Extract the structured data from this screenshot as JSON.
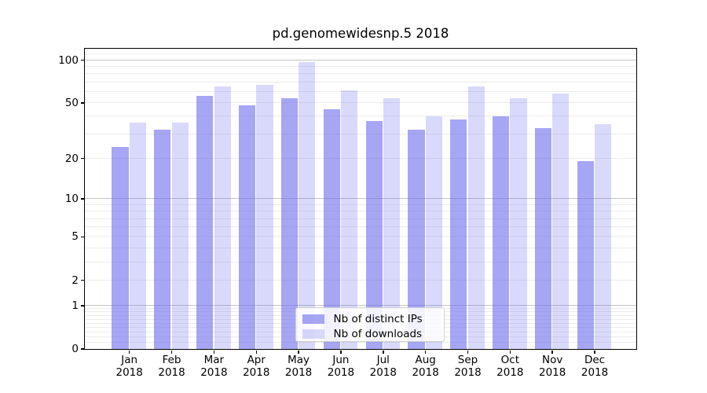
{
  "chart_data": {
    "type": "bar",
    "title": "pd.genomewidesnp.5 2018",
    "categories": [
      "Jan",
      "Feb",
      "Mar",
      "Apr",
      "May",
      "Jun",
      "Jul",
      "Aug",
      "Sep",
      "Oct",
      "Nov",
      "Dec"
    ],
    "x_tick_year": "2018",
    "series": [
      {
        "name": "Nb of distinct IPs",
        "base_color": "#6666ee",
        "alpha": 0.58,
        "effective_color": "#a8a8f3",
        "values": [
          24,
          32,
          56,
          48,
          54,
          45,
          37,
          32,
          38,
          40,
          33,
          19
        ]
      },
      {
        "name": "Nb of downloads",
        "base_color": "#6666ee",
        "alpha": 0.25,
        "effective_color": "#d9d9f9",
        "values": [
          36,
          36,
          65,
          67,
          97,
          61,
          54,
          40,
          65,
          54,
          58,
          35
        ]
      }
    ],
    "yscale": "log1p-base10",
    "ylim": [
      0,
      120.5
    ],
    "xlabel": "",
    "ylabel": "",
    "y_tick_values": [
      0,
      1,
      2,
      5,
      10,
      20,
      50,
      100
    ],
    "y_tick_labels": [
      "0",
      "1",
      "2",
      "5",
      "10",
      "20",
      "50",
      "100"
    ],
    "grid": "horizontal",
    "major_gridline_values": [
      1,
      10,
      100
    ],
    "legend_position": "lower center",
    "colors": {
      "major_grid": "#c5c5c5",
      "minor_grid": "#ececec",
      "axis": "#000000",
      "text": "#000000"
    }
  }
}
